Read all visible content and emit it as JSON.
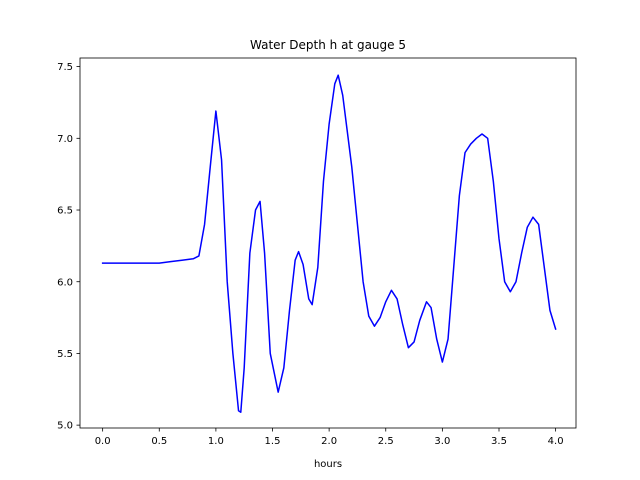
{
  "chart_data": {
    "type": "line",
    "title": "Water Depth h at gauge 5",
    "xlabel": "hours",
    "ylabel": "",
    "xlim": [
      -0.2,
      4.18
    ],
    "ylim": [
      4.98,
      7.56
    ],
    "xticks": [
      0.0,
      0.5,
      1.0,
      1.5,
      2.0,
      2.5,
      3.0,
      3.5,
      4.0
    ],
    "xtick_labels": [
      "0.0",
      "0.5",
      "1.0",
      "1.5",
      "2.0",
      "2.5",
      "3.0",
      "3.5",
      "4.0"
    ],
    "yticks": [
      5.0,
      5.5,
      6.0,
      6.5,
      7.0,
      7.5
    ],
    "ytick_labels": [
      "5.0",
      "5.5",
      "6.0",
      "6.5",
      "7.0",
      "7.5"
    ],
    "grid": false,
    "legend": "none",
    "series": [
      {
        "color": "#0000ff",
        "points": [
          [
            0.0,
            6.13
          ],
          [
            0.2,
            6.13
          ],
          [
            0.4,
            6.13
          ],
          [
            0.5,
            6.13
          ],
          [
            0.6,
            6.14
          ],
          [
            0.7,
            6.15
          ],
          [
            0.8,
            6.16
          ],
          [
            0.85,
            6.18
          ],
          [
            0.9,
            6.4
          ],
          [
            0.95,
            6.8
          ],
          [
            1.0,
            7.19
          ],
          [
            1.05,
            6.85
          ],
          [
            1.1,
            6.0
          ],
          [
            1.15,
            5.5
          ],
          [
            1.2,
            5.1
          ],
          [
            1.22,
            5.09
          ],
          [
            1.25,
            5.4
          ],
          [
            1.3,
            6.2
          ],
          [
            1.35,
            6.5
          ],
          [
            1.39,
            6.56
          ],
          [
            1.43,
            6.2
          ],
          [
            1.48,
            5.5
          ],
          [
            1.55,
            5.23
          ],
          [
            1.6,
            5.4
          ],
          [
            1.65,
            5.8
          ],
          [
            1.7,
            6.15
          ],
          [
            1.73,
            6.21
          ],
          [
            1.77,
            6.12
          ],
          [
            1.82,
            5.88
          ],
          [
            1.85,
            5.84
          ],
          [
            1.9,
            6.1
          ],
          [
            1.95,
            6.7
          ],
          [
            2.0,
            7.1
          ],
          [
            2.05,
            7.38
          ],
          [
            2.08,
            7.44
          ],
          [
            2.12,
            7.3
          ],
          [
            2.2,
            6.8
          ],
          [
            2.25,
            6.4
          ],
          [
            2.3,
            6.0
          ],
          [
            2.35,
            5.76
          ],
          [
            2.4,
            5.69
          ],
          [
            2.45,
            5.75
          ],
          [
            2.5,
            5.86
          ],
          [
            2.55,
            5.94
          ],
          [
            2.6,
            5.88
          ],
          [
            2.65,
            5.7
          ],
          [
            2.7,
            5.54
          ],
          [
            2.75,
            5.58
          ],
          [
            2.8,
            5.73
          ],
          [
            2.86,
            5.86
          ],
          [
            2.9,
            5.82
          ],
          [
            2.95,
            5.6
          ],
          [
            3.0,
            5.44
          ],
          [
            3.05,
            5.6
          ],
          [
            3.1,
            6.1
          ],
          [
            3.15,
            6.6
          ],
          [
            3.2,
            6.9
          ],
          [
            3.25,
            6.96
          ],
          [
            3.3,
            7.0
          ],
          [
            3.35,
            7.03
          ],
          [
            3.4,
            7.0
          ],
          [
            3.45,
            6.7
          ],
          [
            3.5,
            6.3
          ],
          [
            3.55,
            6.0
          ],
          [
            3.6,
            5.93
          ],
          [
            3.65,
            6.0
          ],
          [
            3.7,
            6.2
          ],
          [
            3.75,
            6.38
          ],
          [
            3.8,
            6.45
          ],
          [
            3.85,
            6.4
          ],
          [
            3.9,
            6.1
          ],
          [
            3.95,
            5.8
          ],
          [
            4.0,
            5.67
          ]
        ]
      }
    ]
  }
}
